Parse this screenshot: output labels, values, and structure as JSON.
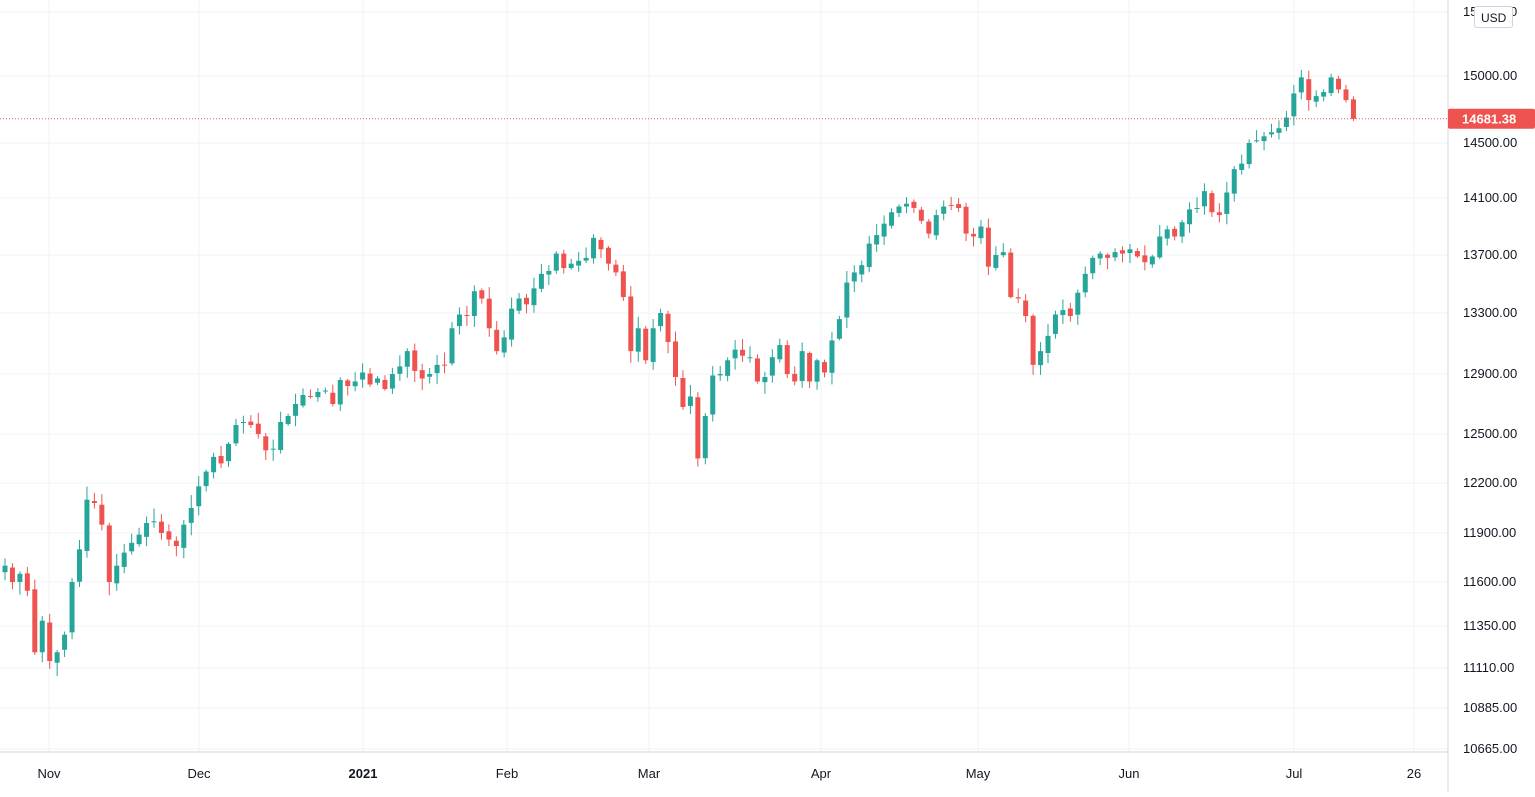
{
  "currency": "USD",
  "last_price_label": "14681.38",
  "colors": {
    "up": "#26a69a",
    "down": "#ef5350",
    "grid": "#f0f3fa",
    "axis_text": "#131722"
  },
  "chart_data": {
    "type": "candlestick",
    "y_tick_labels": [
      "15500.00",
      "15000.00",
      "14500.00",
      "14100.00",
      "13700.00",
      "13300.00",
      "12900.00",
      "12500.00",
      "12200.00",
      "11900.00",
      "11600.00",
      "11350.00",
      "11110.00",
      "10885.00",
      "10665.00"
    ],
    "y_tick_values": [
      15500,
      15000,
      14500,
      14100,
      13700,
      13300,
      12900,
      12500,
      12200,
      11900,
      11600,
      11350,
      11110,
      10885,
      10665
    ],
    "x_tick_labels": [
      {
        "label": "Nov",
        "date": "2020-11-01"
      },
      {
        "label": "Dec",
        "date": "2020-12-01"
      },
      {
        "label": "2021",
        "date": "2021-01-01",
        "bold": true
      },
      {
        "label": "Feb",
        "date": "2021-02-01"
      },
      {
        "label": "Mar",
        "date": "2021-03-01"
      },
      {
        "label": "Apr",
        "date": "2021-04-01"
      },
      {
        "label": "May",
        "date": "2021-05-01"
      },
      {
        "label": "Jun",
        "date": "2021-06-01"
      },
      {
        "label": "Jul",
        "date": "2021-07-01"
      },
      {
        "label": "26",
        "date": "2021-07-26"
      }
    ],
    "x_range": [
      "2020-10-21",
      "2021-08-01"
    ],
    "last_price": 14681.38,
    "ohlc_close": [
      11700,
      11600,
      11650,
      11550,
      11200,
      11380,
      11150,
      11200,
      11300,
      11600,
      11800,
      12100,
      12080,
      11950,
      11600,
      11700,
      11780,
      11840,
      11890,
      11960,
      11970,
      11900,
      11860,
      11820,
      11950,
      12050,
      12180,
      12270,
      12360,
      12320,
      12440,
      12560,
      12580,
      12560,
      12500,
      12400,
      12410,
      12580,
      12620,
      12700,
      12760,
      12750,
      12780,
      12790,
      12700,
      12860,
      12820,
      12850,
      12910,
      12830,
      12870,
      12800,
      12900,
      12950,
      13050,
      12920,
      12870,
      12900,
      12960,
      12960,
      13200,
      13290,
      13280,
      13450,
      13400,
      13200,
      13050,
      13140,
      13330,
      13400,
      13360,
      13470,
      13570,
      13590,
      13710,
      13610,
      13640,
      13660,
      13680,
      13820,
      13740,
      13640,
      13580,
      13410,
      13050,
      13200,
      12990,
      13200,
      13300,
      13110,
      12880,
      12680,
      12750,
      12350,
      12620,
      12890,
      12900,
      12990,
      13060,
      13020,
      13010,
      12850,
      12880,
      13010,
      13090,
      12900,
      12850,
      13050,
      12850,
      12990,
      12910,
      13120,
      13260,
      13510,
      13580,
      13630,
      13780,
      13840,
      13920,
      14000,
      14040,
      14060,
      14030,
      13940,
      13850,
      13980,
      14040,
      14050,
      14030,
      13850,
      13830,
      13900,
      13620,
      13700,
      13720,
      13410,
      13400,
      13280,
      12960,
      13050,
      13150,
      13290,
      13320,
      13280,
      13440,
      13570,
      13680,
      13710,
      13680,
      13720,
      13710,
      13740,
      13690,
      13650,
      13690,
      13830,
      13880,
      13830,
      13930,
      14020,
      14030,
      14150,
      14000,
      13980,
      14140,
      14310,
      14350,
      14500,
      14520,
      14550,
      14580,
      14610,
      14690,
      14870,
      14990,
      14820,
      14850,
      14880,
      14990,
      14900,
      14820,
      14680
    ],
    "month_index_start": {
      "2020-11": 5,
      "2020-12": 26,
      "2021-01": 48,
      "2021-02": 66,
      "2021-03": 85,
      "2021-04": 107,
      "2021-05": 128,
      "2021-06": 148,
      "2021-07": 170
    }
  }
}
